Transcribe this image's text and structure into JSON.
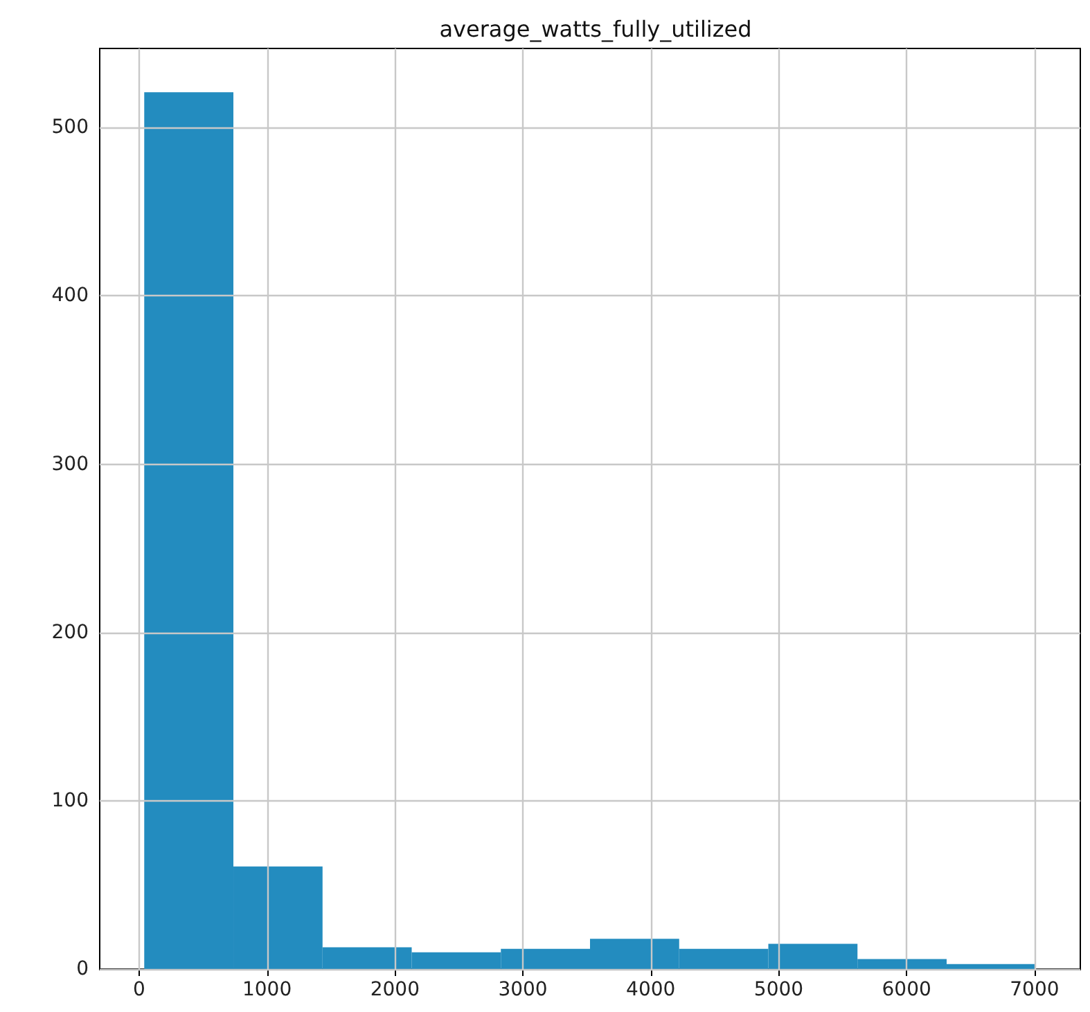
{
  "chart_data": {
    "type": "histogram",
    "title": "average_watts_fully_utilized",
    "bins": [
      40,
      737,
      1434,
      2131,
      2828,
      3525,
      4222,
      4919,
      5616,
      6313,
      7010
    ],
    "values": [
      521,
      61,
      13,
      10,
      12,
      18,
      12,
      15,
      6,
      3
    ],
    "color": "#238cbf",
    "xlim": [
      -308,
      7358
    ],
    "xticks": [
      0,
      1000,
      2000,
      3000,
      4000,
      5000,
      6000,
      7000
    ],
    "ylim": [
      0,
      547
    ],
    "yticks": [
      0,
      100,
      200,
      300,
      400,
      500
    ],
    "grid": true
  }
}
